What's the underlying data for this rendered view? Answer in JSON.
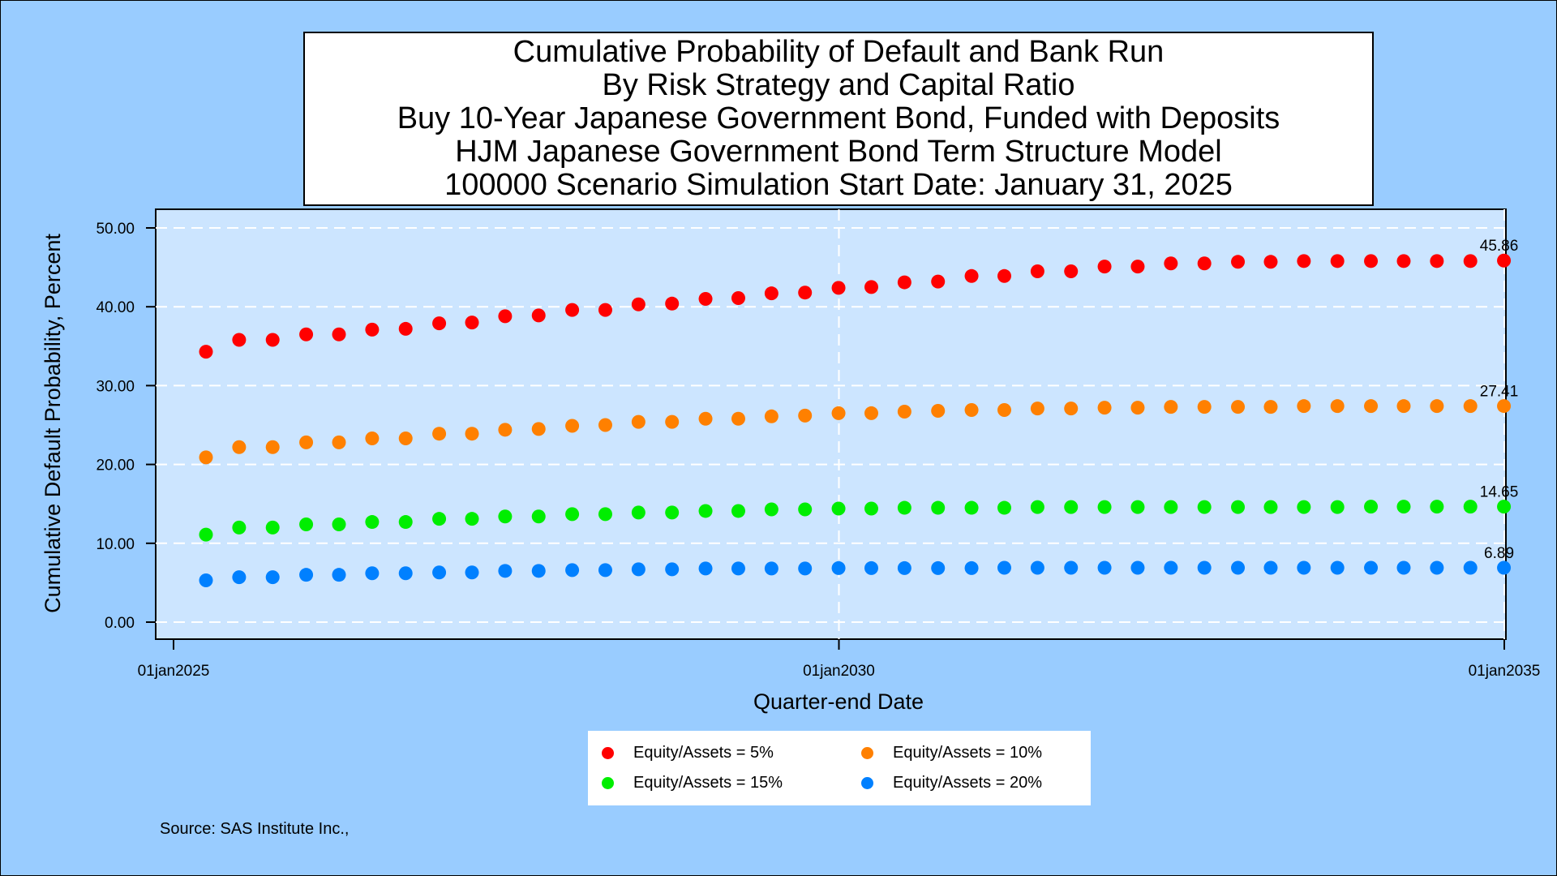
{
  "chart_data": {
    "type": "scatter",
    "title": [
      "Cumulative Probability of Default and Bank Run",
      "By Risk Strategy and Capital Ratio",
      "Buy 10-Year Japanese Government Bond, Funded with Deposits",
      "HJM Japanese Government Bond Term Structure Model",
      "100000 Scenario Simulation Start Date: January 31, 2025"
    ],
    "xlabel": "Quarter-end Date",
    "ylabel": "Cumulative Default Probability, Percent",
    "x_ticks": [
      "01jan2025",
      "01jan2030",
      "01jan2035"
    ],
    "y_ticks": [
      "0.00",
      "10.00",
      "20.00",
      "30.00",
      "40.00",
      "50.00"
    ],
    "xlim": [
      "2025-01-01",
      "2035-01-01"
    ],
    "ylim": [
      0,
      50
    ],
    "grid": true,
    "legend_position": "bottom",
    "x": [
      "2025-03-31",
      "2025-06-30",
      "2025-09-30",
      "2025-12-31",
      "2026-03-31",
      "2026-06-30",
      "2026-09-30",
      "2026-12-31",
      "2027-03-31",
      "2027-06-30",
      "2027-09-30",
      "2027-12-31",
      "2028-03-31",
      "2028-06-30",
      "2028-09-30",
      "2028-12-31",
      "2029-03-31",
      "2029-06-30",
      "2029-09-30",
      "2029-12-31",
      "2030-03-31",
      "2030-06-30",
      "2030-09-30",
      "2030-12-31",
      "2031-03-31",
      "2031-06-30",
      "2031-09-30",
      "2031-12-31",
      "2032-03-31",
      "2032-06-30",
      "2032-09-30",
      "2032-12-31",
      "2033-03-31",
      "2033-06-30",
      "2033-09-30",
      "2033-12-31",
      "2034-03-31",
      "2034-06-30",
      "2034-09-30",
      "2034-12-31"
    ],
    "series": [
      {
        "name": "Equity/Assets = 5%",
        "color": "#ff0000",
        "end_label": "45.86",
        "values": [
          34.3,
          35.8,
          35.8,
          36.5,
          36.5,
          37.1,
          37.2,
          37.9,
          38.0,
          38.8,
          38.9,
          39.6,
          39.6,
          40.3,
          40.4,
          41.0,
          41.1,
          41.7,
          41.8,
          42.4,
          42.5,
          43.1,
          43.2,
          43.9,
          43.9,
          44.5,
          44.5,
          45.1,
          45.1,
          45.5,
          45.5,
          45.7,
          45.7,
          45.8,
          45.8,
          45.8,
          45.8,
          45.8,
          45.8,
          45.86
        ]
      },
      {
        "name": "Equity/Assets = 10%",
        "color": "#ff8000",
        "end_label": "27.41",
        "values": [
          20.9,
          22.2,
          22.2,
          22.8,
          22.8,
          23.3,
          23.3,
          23.9,
          23.9,
          24.4,
          24.5,
          24.9,
          25.0,
          25.4,
          25.4,
          25.8,
          25.8,
          26.1,
          26.2,
          26.5,
          26.5,
          26.7,
          26.8,
          26.9,
          26.9,
          27.1,
          27.1,
          27.2,
          27.2,
          27.3,
          27.3,
          27.3,
          27.3,
          27.4,
          27.4,
          27.4,
          27.4,
          27.4,
          27.4,
          27.41
        ]
      },
      {
        "name": "Equity/Assets = 15%",
        "color": "#00ee00",
        "end_label": "14.65",
        "values": [
          11.1,
          12.0,
          12.0,
          12.4,
          12.4,
          12.7,
          12.7,
          13.1,
          13.1,
          13.4,
          13.4,
          13.7,
          13.7,
          13.9,
          13.9,
          14.1,
          14.1,
          14.3,
          14.3,
          14.4,
          14.4,
          14.5,
          14.5,
          14.5,
          14.5,
          14.6,
          14.6,
          14.6,
          14.6,
          14.6,
          14.6,
          14.6,
          14.6,
          14.6,
          14.6,
          14.65,
          14.65,
          14.65,
          14.65,
          14.65
        ]
      },
      {
        "name": "Equity/Assets = 20%",
        "color": "#0080ff",
        "end_label": "6.89",
        "values": [
          5.3,
          5.7,
          5.7,
          6.0,
          6.0,
          6.2,
          6.2,
          6.3,
          6.3,
          6.5,
          6.5,
          6.6,
          6.6,
          6.7,
          6.7,
          6.8,
          6.8,
          6.8,
          6.8,
          6.85,
          6.85,
          6.85,
          6.85,
          6.85,
          6.89,
          6.89,
          6.89,
          6.89,
          6.89,
          6.89,
          6.89,
          6.89,
          6.89,
          6.89,
          6.89,
          6.89,
          6.89,
          6.89,
          6.89,
          6.89
        ]
      }
    ]
  },
  "source": "Source: SAS Institute Inc.,"
}
